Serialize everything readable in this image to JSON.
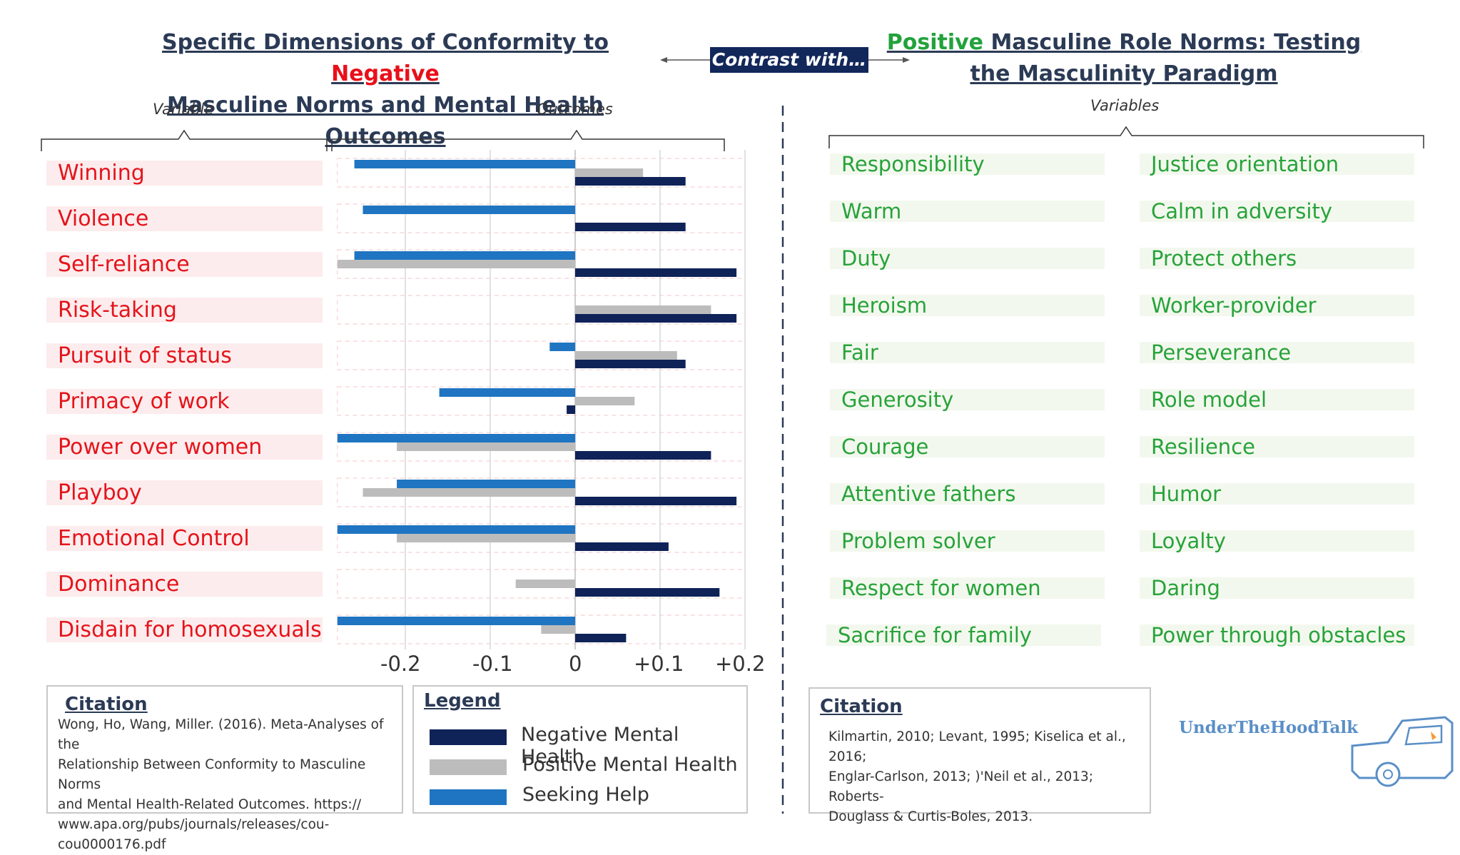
{
  "left_title": {
    "line1_pre": "Specific Dimensions of Conformity to ",
    "line1_emph": "Negative",
    "line2": "Masculine Norms and Mental Health Outcomes"
  },
  "contrast_label": "Contrast with…",
  "right_title": {
    "line1_emph": "Positive",
    "line1_post": " Masculine Role Norms: Testing",
    "line2": "the Masculinity Paradigm"
  },
  "left_sub": {
    "variable": "Variable",
    "outcomes": "Outcomes"
  },
  "right_sub": {
    "variables": "Variables"
  },
  "colors": {
    "negative": "#0f2358",
    "positive": "#bcbcbc",
    "help": "#1f75c1",
    "neg_accent": "#e8101a",
    "pos_accent": "#22a23c"
  },
  "chart_data": {
    "type": "bar",
    "orientation": "horizontal",
    "categories": [
      "Winning",
      "Violence",
      "Self-reliance",
      "Risk-taking",
      "Pursuit of status",
      "Primacy of work",
      "Power over women",
      "Playboy",
      "Emotional Control",
      "Dominance",
      "Disdain for homosexuals"
    ],
    "series": [
      {
        "name": "Seeking Help",
        "values": [
          -0.26,
          -0.25,
          -0.26,
          null,
          -0.03,
          -0.16,
          -0.28,
          -0.21,
          -0.28,
          null,
          -0.28
        ]
      },
      {
        "name": "Positive Mental Health",
        "values": [
          0.08,
          null,
          -0.28,
          0.16,
          0.12,
          0.07,
          -0.21,
          -0.25,
          -0.21,
          -0.07,
          -0.04
        ]
      },
      {
        "name": "Negative Mental Health",
        "values": [
          0.13,
          0.13,
          0.19,
          0.19,
          0.13,
          -0.01,
          0.16,
          0.19,
          0.11,
          0.17,
          0.06
        ]
      }
    ],
    "xlim": [
      -0.28,
      0.19
    ],
    "xticks": [
      -0.2,
      -0.1,
      0,
      0.1,
      0.2
    ],
    "xtick_labels": [
      "-0.2",
      "-0.1",
      "0",
      "+0.1",
      "+0.2"
    ],
    "xlabel": "Outcomes",
    "ylabel": "Variable",
    "grid": true,
    "legend": "below-center"
  },
  "legend": {
    "title": "Legend",
    "items": [
      "Negative Mental Health",
      "Positive Mental Health",
      "Seeking Help"
    ]
  },
  "left_citation": {
    "title": "Citation",
    "lines": [
      "Wong, Ho, Wang, Miller. (2016). Meta-Analyses of the",
      "Relationship Between Conformity to Masculine Norms",
      "and Mental Health-Related Outcomes. https://",
      "www.apa.org/pubs/journals/releases/cou-",
      "cou0000176.pdf"
    ]
  },
  "right_citation": {
    "title": "Citation",
    "lines": [
      "Kilmartin, 2010; Levant, 1995; Kiselica et al., 2016;",
      "Englar-Carlson, 2013; )'Neil et al., 2013; Roberts-",
      "Douglass & Curtis-Boles, 2013."
    ]
  },
  "positive_variables": {
    "col1": [
      "Responsibility",
      "Warm",
      "Duty",
      "Heroism",
      "Fair",
      "Generosity",
      "Courage",
      "Attentive fathers",
      "Problem solver",
      "Respect for women",
      "Sacrifice for family"
    ],
    "col2": [
      "Justice orientation",
      "Calm in adversity",
      "Protect others",
      "Worker-provider",
      "Perseverance",
      "Role model",
      "Resilience",
      "Humor",
      "Loyalty",
      "Daring",
      "Power through obstacles"
    ]
  },
  "logo": {
    "text": "UnderTheHoodTalk"
  }
}
